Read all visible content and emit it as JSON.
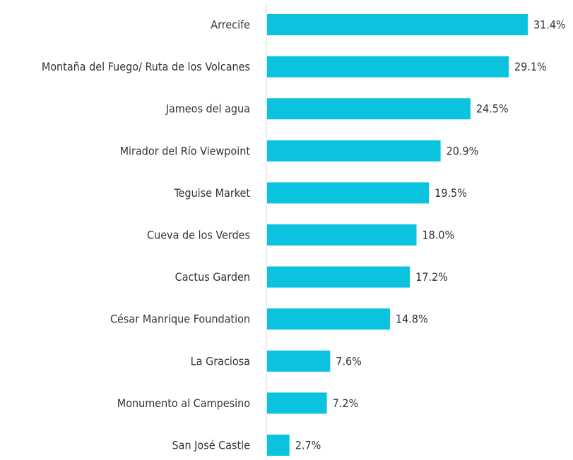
{
  "chart_data": {
    "type": "barh",
    "categories": [
      "Arrecife",
      "Montaña del Fuego/ Ruta de los Volcanes",
      "Jameos del agua",
      "Mirador del Río Viewpoint",
      "Teguise Market",
      "Cueva de los Verdes",
      "Cactus Garden",
      "César Manrique Foundation",
      "La Graciosa",
      "Monumento al Campesino",
      "San José Castle"
    ],
    "values": [
      31.4,
      29.1,
      24.5,
      20.9,
      19.5,
      18.0,
      17.2,
      14.8,
      7.6,
      7.2,
      2.7
    ],
    "value_labels": [
      "31.4%",
      "29.1%",
      "24.5%",
      "20.9%",
      "19.5%",
      "18.0%",
      "17.2%",
      "14.8%",
      "7.6%",
      "7.2%",
      "2.7%"
    ],
    "color": "#0bc3df"
  }
}
